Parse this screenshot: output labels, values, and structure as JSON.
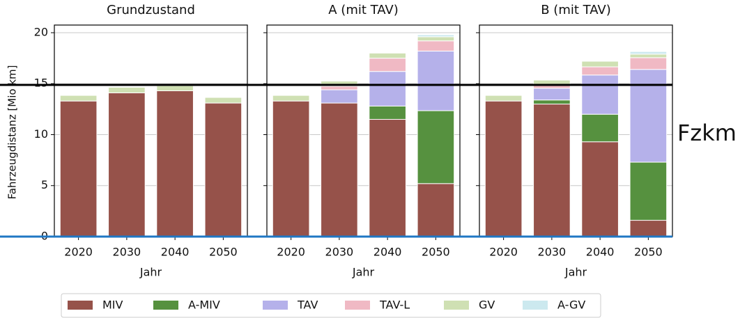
{
  "chart_data": {
    "type": "bar",
    "stacked": true,
    "panels": [
      "Grundzustand",
      "A (mit TAV)",
      "B (mit TAV)"
    ],
    "ylabel": "Fahrzeugdistanz [Mio km]",
    "xlabel": "Jahr",
    "categories": [
      "2020",
      "2030",
      "2040",
      "2050"
    ],
    "ylim": [
      0,
      20.75
    ],
    "yticks": [
      0,
      5,
      10,
      15,
      20
    ],
    "grid": true,
    "series": [
      {
        "name": "MIV",
        "color": "#96524a",
        "values": [
          [
            13.3,
            14.1,
            14.3,
            13.1
          ],
          [
            13.3,
            13.1,
            11.5,
            5.2
          ],
          [
            13.3,
            13.0,
            9.3,
            1.6
          ]
        ]
      },
      {
        "name": "A-MIV",
        "color": "#56913f",
        "values": [
          [
            0,
            0,
            0,
            0
          ],
          [
            0,
            0,
            1.3,
            7.15
          ],
          [
            0,
            0.4,
            2.7,
            5.7
          ]
        ]
      },
      {
        "name": "TAV",
        "color": "#b5b1ea",
        "values": [
          [
            0,
            0,
            0,
            0
          ],
          [
            0,
            1.3,
            3.4,
            5.85
          ],
          [
            0,
            1.15,
            3.85,
            9.1
          ]
        ]
      },
      {
        "name": "TAV-L",
        "color": "#f0b9c4",
        "values": [
          [
            0,
            0,
            0,
            0
          ],
          [
            0,
            0.35,
            1.3,
            1.0
          ],
          [
            0,
            0.3,
            0.8,
            1.15
          ]
        ]
      },
      {
        "name": "GV",
        "color": "#cfe0b3",
        "values": [
          [
            0.55,
            0.55,
            0.5,
            0.55
          ],
          [
            0.55,
            0.5,
            0.5,
            0.4
          ],
          [
            0.55,
            0.5,
            0.55,
            0.35
          ]
        ]
      },
      {
        "name": "A-GV",
        "color": "#cce9ef",
        "values": [
          [
            0,
            0,
            0,
            0
          ],
          [
            0,
            0,
            0,
            0.2
          ],
          [
            0,
            0,
            0,
            0.25
          ]
        ]
      }
    ]
  },
  "annotation": "Fzkm"
}
